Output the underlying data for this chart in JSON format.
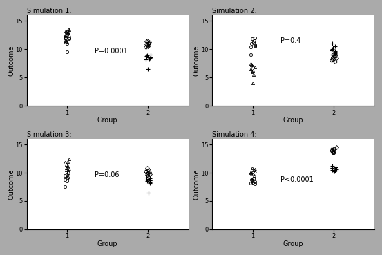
{
  "background_color": "#aaaaaa",
  "plot_facecolor": "#ffffff",
  "titles": [
    "Simulation 1:",
    "Simulation 2:",
    "Simulation 3:",
    "Simulation 4:"
  ],
  "pvalues": [
    "P=0.0001",
    "P=0.4",
    "P=0.06",
    "P<0.0001"
  ],
  "xlabel": "Group",
  "ylabel": "Outcome",
  "ylim": [
    0,
    16
  ],
  "yticks": [
    0,
    5,
    10,
    15
  ],
  "xticks": [
    1,
    2
  ],
  "title_fontsize": 7,
  "label_fontsize": 7,
  "tick_fontsize": 6,
  "pval_fontsize": 7,
  "marker_size": 3,
  "jitter_spread": 0.03,
  "sim1": {
    "g1_tri": [
      13.0,
      12.5,
      13.5,
      12.8,
      13.2,
      12.6,
      12.3,
      13.4,
      12.9,
      13.1
    ],
    "g1_circ": [
      11.5,
      11.8,
      12.0,
      11.2,
      11.9,
      12.1,
      11.6,
      9.5,
      11.0,
      11.4
    ],
    "g2_dia": [
      11.0,
      11.3,
      11.5,
      10.8,
      10.5,
      11.2,
      10.9,
      11.1,
      10.7,
      10.4
    ],
    "g2_plus": [
      8.5,
      8.8,
      8.2,
      9.0,
      8.6,
      8.4,
      8.9,
      8.7,
      8.3,
      6.5
    ]
  },
  "sim2": {
    "g1_circ": [
      12.0,
      11.5,
      10.5,
      10.8,
      11.2,
      10.6,
      9.0,
      11.0,
      10.4,
      11.8
    ],
    "g1_tri": [
      7.5,
      7.0,
      6.5,
      6.8,
      7.2,
      5.5,
      6.0,
      4.0,
      6.2,
      7.3
    ],
    "g2_plus": [
      10.5,
      10.0,
      9.8,
      9.5,
      9.2,
      9.6,
      9.3,
      9.0,
      10.2,
      11.0
    ],
    "g2_dia": [
      9.0,
      8.5,
      8.8,
      8.2,
      8.6,
      8.9,
      8.3,
      7.8,
      8.1,
      8.4
    ]
  },
  "sim3": {
    "g1_tri": [
      12.5,
      12.0,
      11.5,
      11.8,
      10.5,
      10.8,
      10.2,
      11.2,
      10.6,
      11.0
    ],
    "g1_circ": [
      9.5,
      9.8,
      10.0,
      9.2,
      10.3,
      9.6,
      8.5,
      9.0,
      8.8,
      7.5
    ],
    "g2_dia": [
      10.3,
      10.5,
      10.8,
      10.0,
      9.8,
      9.6,
      9.5,
      10.1,
      9.9,
      10.2
    ],
    "g2_plus": [
      8.5,
      8.8,
      8.2,
      8.6,
      8.9,
      9.0,
      8.3,
      9.2,
      8.7,
      6.5
    ]
  },
  "sim4": {
    "g1_tri": [
      10.5,
      10.2,
      10.8,
      10.0,
      9.8,
      10.3,
      9.5,
      10.6,
      10.1,
      9.7
    ],
    "g1_circ": [
      8.5,
      8.8,
      8.2,
      8.6,
      8.0,
      8.9,
      8.3,
      9.0,
      8.7,
      8.4
    ],
    "g2_dia": [
      14.5,
      13.8,
      14.0,
      13.5,
      14.2,
      13.9,
      14.3,
      13.6,
      14.1,
      13.7
    ],
    "g2_plus": [
      11.0,
      10.5,
      10.8,
      10.2,
      10.6,
      10.9,
      10.3,
      10.7,
      11.2,
      10.4
    ]
  }
}
